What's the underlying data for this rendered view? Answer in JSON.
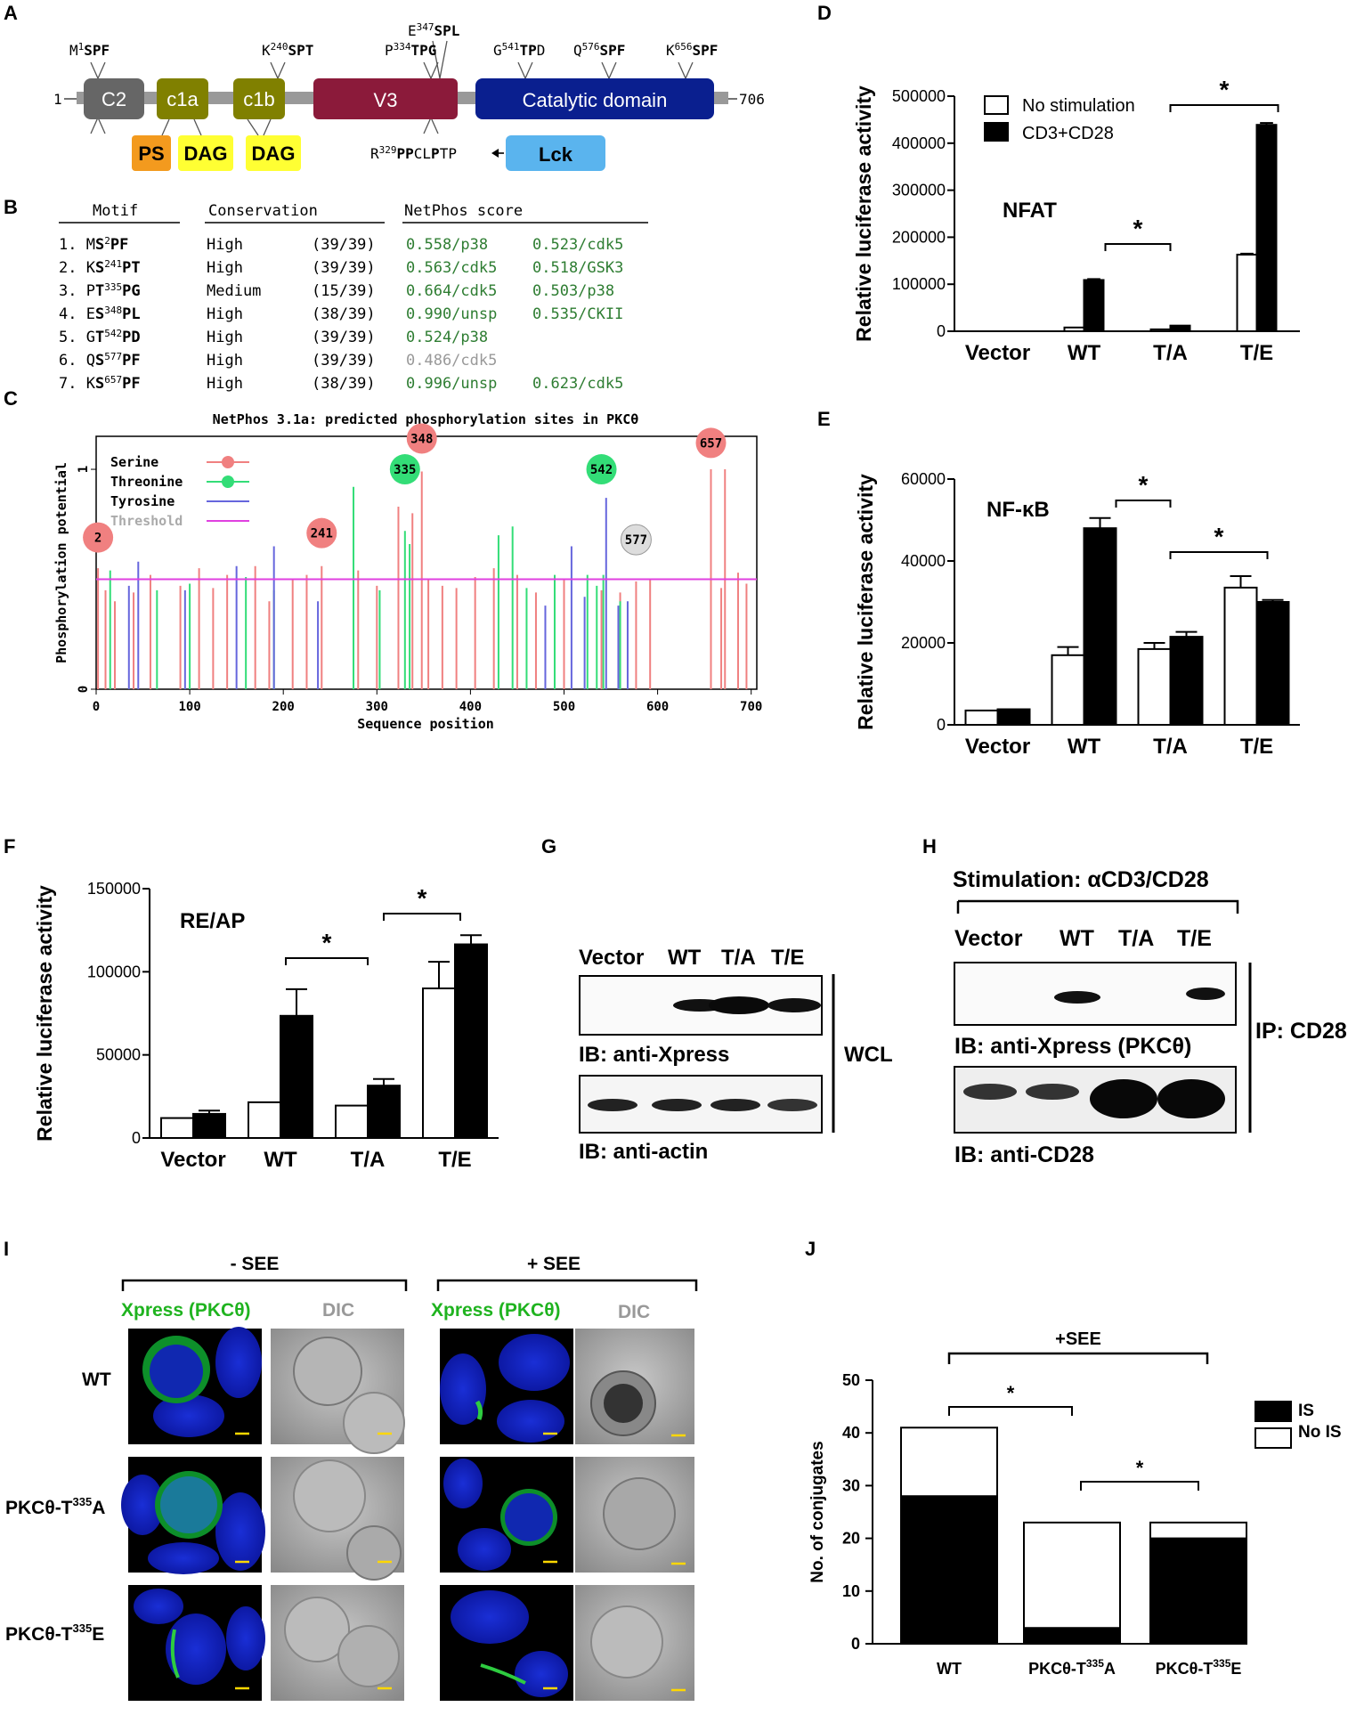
{
  "panel_letters": {
    "A": "A",
    "B": "B",
    "C": "C",
    "D": "D",
    "E": "E",
    "F": "F",
    "G": "G",
    "H": "H",
    "I": "I",
    "J": "J"
  },
  "colors": {
    "c2": "#666666",
    "c1": "#808000",
    "v3": "#8b1a3a",
    "catalytic": "#0a1f8f",
    "ps": "#f39a1e",
    "dag": "#ffff33",
    "lck": "#5ab4ee",
    "green_text": "#2e7d32",
    "serine": "#f08080",
    "threonine": "#33dd77",
    "tyrosine": "#6666dd",
    "threshold": "#e040e0"
  },
  "panelA": {
    "domains": [
      "C2",
      "c1a",
      "c1b",
      "V3",
      "Catalytic domain"
    ],
    "ps": "PS",
    "dag1": "DAG",
    "dag2": "DAG",
    "lck": "Lck",
    "start": "1",
    "end": "706",
    "site_labels": {
      "m1": "M",
      "m1sup": "1",
      "m1b": "SPF",
      "k240": "K",
      "k240sup": "240",
      "k240b": "SPT",
      "e347": "E",
      "e347sup": "347",
      "e347b": "SPL",
      "p334": "P",
      "p334sup": "334",
      "p334b": "TPG",
      "g541": "G",
      "g541sup": "541",
      "g541b": "TP",
      "g541c": "D",
      "q576": "Q",
      "q576sup": "576",
      "q576b": "SPF",
      "k656": "K",
      "k656sup": "656",
      "k656b": "SPF"
    },
    "r329": "R",
    "r329sup": "329",
    "r329b": "PP",
    "r329c": "CL",
    "r329d": "P",
    "r329e": "TP"
  },
  "panelB": {
    "headers": [
      "Motif",
      "Conservation",
      "NetPhos score"
    ],
    "rows": [
      {
        "n": "1.",
        "a": "M",
        "b": "S",
        "sup": "2",
        "c": "PF",
        "cons": "High",
        "frac": "(39/39)",
        "s1": "0.558/p38",
        "s2": "0.523/cdk5"
      },
      {
        "n": "2.",
        "a": "K",
        "b": "S",
        "sup": "241",
        "c": "PT",
        "cons": "High",
        "frac": "(39/39)",
        "s1": "0.563/cdk5",
        "s2": "0.518/GSK3"
      },
      {
        "n": "3.",
        "a": "P",
        "b": "T",
        "sup": "335",
        "c": "PG",
        "cons": "Medium",
        "frac": "(15/39)",
        "s1": "0.664/cdk5",
        "s2": "0.503/p38"
      },
      {
        "n": "4.",
        "a": "E",
        "b": "S",
        "sup": "348",
        "c": "PL",
        "cons": "High",
        "frac": "(38/39)",
        "s1": "0.990/unsp",
        "s2": "0.535/CKII"
      },
      {
        "n": "5.",
        "a": "G",
        "b": "T",
        "sup": "542",
        "c": "PD",
        "cons": "High",
        "frac": "(39/39)",
        "s1": "0.524/p38",
        "s2": ""
      },
      {
        "n": "6.",
        "a": "Q",
        "b": "S",
        "sup": "577",
        "c": "PF",
        "cons": "High",
        "frac": "(39/39)",
        "s1": "0.486/cdk5",
        "s2": ""
      },
      {
        "n": "7.",
        "a": "K",
        "b": "S",
        "sup": "657",
        "c": "PF",
        "cons": "High",
        "frac": "(38/39)",
        "s1": "0.996/unsp",
        "s2": "0.623/cdk5"
      }
    ]
  },
  "panelC": {
    "title": "NetPhos 3.1a: predicted phosphorylation sites in PKCθ",
    "xlabel": "Sequence position",
    "ylabel": "Phosphorylation potential",
    "legend": [
      "Serine",
      "Threonine",
      "Tyrosine",
      "Threshold"
    ],
    "circles": [
      "2",
      "241",
      "335",
      "348",
      "542",
      "577",
      "657"
    ]
  },
  "panelG": {
    "lanes": [
      "Vector",
      "WT",
      "T/A",
      "T/E"
    ],
    "ib1": "IB: anti-Xpress",
    "ib2": "IB: anti-actin",
    "wcl": "WCL"
  },
  "panelH": {
    "stim": "Stimulation: αCD3/CD28",
    "lanes": [
      "Vector",
      "WT",
      "T/A",
      "T/E"
    ],
    "ib1": "IB: anti-Xpress (PKCθ)",
    "ib2": "IB: anti-CD28",
    "ip": "IP: CD28"
  },
  "panelI": {
    "minus": "- SEE",
    "plus": "+ SEE",
    "xpress": "Xpress (PKCθ)",
    "dic": "DIC",
    "rows": {
      "wt": "WT",
      "ta": "PKCθ-T",
      "ta_sup": "335",
      "ta_end": "A",
      "te": "PKCθ-T",
      "te_sup": "335",
      "te_end": "E"
    }
  },
  "chart_data": [
    {
      "panel": "C",
      "type": "bar",
      "title": "NetPhos 3.1a: predicted phosphorylation sites in PKCθ",
      "xlabel": "Sequence position",
      "ylabel": "Phosphorylation potential",
      "xlim": [
        0,
        706
      ],
      "ylim": [
        0,
        1.15
      ],
      "xticks": [
        0,
        100,
        200,
        300,
        400,
        500,
        600,
        700
      ],
      "yticks": [
        0,
        1
      ],
      "threshold": 0.5,
      "series": [
        {
          "name": "Serine",
          "values": [
            [
              2,
              0.55
            ],
            [
              10,
              0.45
            ],
            [
              20,
              0.4
            ],
            [
              40,
              0.44
            ],
            [
              58,
              0.52
            ],
            [
              90,
              0.47
            ],
            [
              110,
              0.55
            ],
            [
              125,
              0.46
            ],
            [
              140,
              0.52
            ],
            [
              170,
              0.56
            ],
            [
              185,
              0.4
            ],
            [
              210,
              0.5
            ],
            [
              225,
              0.52
            ],
            [
              241,
              0.56
            ],
            [
              280,
              0.54
            ],
            [
              300,
              0.47
            ],
            [
              323,
              0.83
            ],
            [
              338,
              0.8
            ],
            [
              348,
              0.99
            ],
            [
              355,
              0.5
            ],
            [
              370,
              0.47
            ],
            [
              385,
              0.46
            ],
            [
              405,
              0.51
            ],
            [
              425,
              0.55
            ],
            [
              450,
              0.52
            ],
            [
              470,
              0.44
            ],
            [
              500,
              0.5
            ],
            [
              540,
              0.45
            ],
            [
              560,
              0.44
            ],
            [
              577,
              0.49
            ],
            [
              592,
              0.5
            ],
            [
              657,
              1.0
            ],
            [
              668,
              0.46
            ],
            [
              672,
              1.0
            ],
            [
              686,
              0.53
            ],
            [
              695,
              0.48
            ]
          ]
        },
        {
          "name": "Threonine",
          "values": [
            [
              15,
              0.54
            ],
            [
              65,
              0.45
            ],
            [
              100,
              0.48
            ],
            [
              160,
              0.51
            ],
            [
              190,
              0.45
            ],
            [
              275,
              0.92
            ],
            [
              303,
              0.45
            ],
            [
              330,
              0.72
            ],
            [
              335,
              0.66
            ],
            [
              430,
              0.7
            ],
            [
              445,
              0.74
            ],
            [
              460,
              0.46
            ],
            [
              490,
              0.52
            ],
            [
              525,
              0.52
            ],
            [
              535,
              0.47
            ],
            [
              542,
              0.52
            ],
            [
              560,
              0.4
            ]
          ]
        },
        {
          "name": "Tyrosine",
          "values": [
            [
              35,
              0.47
            ],
            [
              45,
              0.58
            ],
            [
              95,
              0.45
            ],
            [
              150,
              0.56
            ],
            [
              190,
              0.65
            ],
            [
              237,
              0.4
            ],
            [
              480,
              0.38
            ],
            [
              508,
              0.65
            ],
            [
              522,
              0.42
            ],
            [
              545,
              0.87
            ],
            [
              558,
              0.38
            ],
            [
              568,
              0.4
            ]
          ]
        }
      ]
    },
    {
      "panel": "D",
      "type": "bar",
      "title": "NFAT",
      "ylabel": "Relative luciferase activity",
      "ylim": [
        0,
        500000
      ],
      "yticks": [
        0,
        100000,
        200000,
        300000,
        400000,
        500000
      ],
      "categories": [
        "Vector",
        "WT",
        "T/A",
        "T/E"
      ],
      "series": [
        {
          "name": "No stimulation",
          "values": [
            0,
            8000,
            4000,
            163000
          ],
          "err": [
            0,
            0,
            0,
            2000
          ]
        },
        {
          "name": "CD3+CD28",
          "values": [
            0,
            109000,
            12000,
            439000
          ],
          "err": [
            0,
            2000,
            0,
            4000
          ]
        }
      ],
      "significance": [
        {
          "from": 1,
          "to": 2,
          "label": "*"
        },
        {
          "from": 2,
          "to": 3,
          "label": "*"
        }
      ]
    },
    {
      "panel": "E",
      "type": "bar",
      "title": "NF-κB",
      "ylabel": "Relative luciferase activity",
      "ylim": [
        0,
        60000
      ],
      "yticks": [
        0,
        20000,
        40000,
        60000
      ],
      "categories": [
        "Vector",
        "WT",
        "T/A",
        "T/E"
      ],
      "series": [
        {
          "name": "No stimulation",
          "values": [
            3500,
            17000,
            18500,
            33500
          ],
          "err": [
            0,
            2000,
            1500,
            2800
          ]
        },
        {
          "name": "CD3+CD28",
          "values": [
            3800,
            48000,
            21500,
            30000
          ],
          "err": [
            0,
            2500,
            1200,
            500
          ]
        }
      ],
      "significance": [
        {
          "from": 1,
          "to": 2,
          "label": "*"
        },
        {
          "from": 2,
          "to": 3,
          "label": "*"
        }
      ]
    },
    {
      "panel": "F",
      "type": "bar",
      "title": "RE/AP",
      "ylabel": "Relative luciferase activity",
      "ylim": [
        0,
        150000
      ],
      "yticks": [
        0,
        50000,
        100000,
        150000
      ],
      "categories": [
        "Vector",
        "WT",
        "T/A",
        "T/E"
      ],
      "series": [
        {
          "name": "No stimulation",
          "values": [
            12000,
            21500,
            19500,
            90000
          ],
          "err": [
            0,
            0,
            0,
            16000
          ]
        },
        {
          "name": "CD3+CD28",
          "values": [
            14500,
            73500,
            31500,
            116500
          ],
          "err": [
            2000,
            16000,
            4000,
            5500
          ]
        }
      ],
      "significance": [
        {
          "from": 1,
          "to": 2,
          "label": "*"
        },
        {
          "from": 2,
          "to": 3,
          "label": "*"
        }
      ]
    },
    {
      "panel": "J",
      "type": "bar",
      "title": "+SEE",
      "ylabel": "No. of conjugates",
      "ylim": [
        0,
        50
      ],
      "yticks": [
        0,
        10,
        20,
        30,
        40,
        50
      ],
      "categories": [
        "WT",
        "PKCθ-T335A",
        "PKCθ-T335E"
      ],
      "series": [
        {
          "name": "IS",
          "values": [
            28,
            3,
            20
          ]
        },
        {
          "name": "No IS",
          "values": [
            13,
            20,
            3
          ]
        }
      ],
      "significance": [
        {
          "from": 0,
          "to": 1,
          "label": "*"
        },
        {
          "from": 1,
          "to": 2,
          "label": "*"
        }
      ]
    }
  ]
}
